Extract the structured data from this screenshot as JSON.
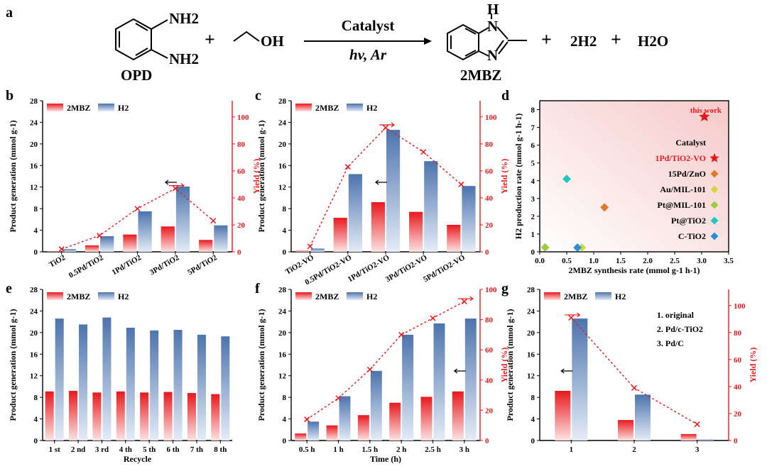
{
  "panel_labels": [
    "a",
    "b",
    "c",
    "d",
    "e",
    "f",
    "g"
  ],
  "scheme": {
    "reactant1": "OPD",
    "reactant1_groups": [
      "NH2",
      "NH2"
    ],
    "reactant2": "OH",
    "plus": "+",
    "arrow_top": "Catalyst",
    "arrow_bottom": "hv, Ar",
    "product": "2MBZ",
    "product_atoms": [
      "H",
      "N",
      "N"
    ],
    "byproducts": [
      "2H2",
      "H2O"
    ]
  },
  "legend": {
    "s1": "2MBZ",
    "s2": "H2"
  },
  "colors": {
    "red": "#e8191d",
    "blue": "#4d74ad",
    "dash": "#e8191d"
  },
  "chart_data": [
    {
      "id": "b",
      "type": "bar+line",
      "categories": [
        "TiO2",
        "0.5Pd/TiO2",
        "1Pd/TiO2",
        "3Pd/TiO2",
        "5Pd/TiO2"
      ],
      "series": [
        {
          "name": "2MBZ",
          "values": [
            0.1,
            1.2,
            3.2,
            4.7,
            2.2
          ]
        },
        {
          "name": "H2",
          "values": [
            0.5,
            2.9,
            7.5,
            12.1,
            4.9
          ]
        },
        {
          "name": "Yield",
          "axis": "right",
          "values": [
            2,
            12,
            32,
            47,
            23
          ]
        }
      ],
      "ylabel": "Product generation (mmol g-1)",
      "y2label": "Yield (%)",
      "ylim": [
        0,
        28
      ],
      "y2lim": [
        0,
        112
      ],
      "yticks": [
        0,
        4,
        8,
        12,
        16,
        20,
        24,
        28
      ],
      "y2ticks": [
        0,
        20,
        40,
        60,
        80,
        100
      ]
    },
    {
      "id": "c",
      "type": "bar+line",
      "categories": [
        "TiO2-VO",
        "0.5Pd/TiO2-VO",
        "1Pd/TiO2-VO",
        "3Pd/TiO2-VO",
        "5Pd/TiO2-VO"
      ],
      "series": [
        {
          "name": "2MBZ",
          "values": [
            0.2,
            6.3,
            9.2,
            7.4,
            5.0
          ]
        },
        {
          "name": "H2",
          "values": [
            0.6,
            14.4,
            22.6,
            16.8,
            12.2
          ]
        },
        {
          "name": "Yield",
          "axis": "right",
          "values": [
            4,
            63,
            92,
            74,
            50
          ]
        }
      ],
      "ylabel": "Product generation (mmol g-1)",
      "y2label": "Yield (%)",
      "ylim": [
        0,
        28
      ],
      "y2lim": [
        0,
        112
      ],
      "yticks": [
        0,
        4,
        8,
        12,
        16,
        20,
        24,
        28
      ],
      "y2ticks": [
        0,
        20,
        40,
        60,
        80,
        100
      ]
    },
    {
      "id": "d",
      "type": "scatter",
      "xlabel": "2MBZ synthesis rate (mmol g-1 h-1)",
      "ylabel": "H2 production rate (mmol g-1 h-1)",
      "xlim": [
        0,
        3.5
      ],
      "ylim": [
        0,
        8.5
      ],
      "xticks": [
        0.0,
        0.5,
        1.0,
        1.5,
        2.0,
        2.5,
        3.0,
        3.5
      ],
      "yticks": [
        0,
        1,
        2,
        3,
        4,
        5,
        6,
        7,
        8
      ],
      "legend_title": "Catalyst",
      "annotation": "this work",
      "points": [
        {
          "name": "1Pd/TiO2-VO",
          "x": 3.05,
          "y": 7.6,
          "marker": "star",
          "color": "#e8191d"
        },
        {
          "name": "15Pd/ZnO",
          "x": 1.2,
          "y": 2.5,
          "marker": "diamond",
          "color": "#e07b2a"
        },
        {
          "name": "Au/MIL-101",
          "x": 0.78,
          "y": 0.0,
          "marker": "diamond",
          "color": "#d8d640"
        },
        {
          "name": "Pt@MIL-101",
          "x": 0.1,
          "y": 0.25,
          "marker": "diamond",
          "color": "#9ccc3c"
        },
        {
          "name": "Pt@TiO2",
          "x": 0.5,
          "y": 4.1,
          "marker": "diamond",
          "color": "#22c7c0"
        },
        {
          "name": "C-TiO2",
          "x": 0.7,
          "y": 0.0,
          "marker": "diamond",
          "color": "#2b8fd6"
        }
      ]
    },
    {
      "id": "e",
      "type": "bar",
      "xlabel": "Recycle",
      "categories": [
        "1 st",
        "2 nd",
        "3 rd",
        "4 th",
        "5 th",
        "6 th",
        "7 th",
        "8 th"
      ],
      "series": [
        {
          "name": "2MBZ",
          "values": [
            9.1,
            9.2,
            8.9,
            9.1,
            8.9,
            9.0,
            8.8,
            8.6
          ]
        },
        {
          "name": "H2",
          "values": [
            22.6,
            21.5,
            22.8,
            20.9,
            20.4,
            20.5,
            19.6,
            19.3
          ]
        }
      ],
      "ylabel": "Product generation (mmol g-1)",
      "ylim": [
        0,
        28
      ],
      "yticks": [
        0,
        4,
        8,
        12,
        16,
        20,
        24,
        28
      ]
    },
    {
      "id": "f",
      "type": "bar+line",
      "xlabel": "Time (h)",
      "categories": [
        "0.5 h",
        "1 h",
        "1.5 h",
        "2 h",
        "2.5 h",
        "3 h"
      ],
      "series": [
        {
          "name": "2MBZ",
          "values": [
            1.3,
            2.8,
            4.7,
            7.0,
            8.1,
            9.1
          ]
        },
        {
          "name": "H2",
          "values": [
            3.5,
            8.2,
            12.9,
            19.6,
            21.7,
            22.6
          ]
        },
        {
          "name": "Yield",
          "axis": "right",
          "values": [
            14,
            28,
            47,
            70,
            81,
            92
          ]
        }
      ],
      "ylabel": "Product generation (mmol g-1)",
      "y2label": "Yield (%)",
      "ylim": [
        0,
        28
      ],
      "y2lim": [
        0,
        100
      ],
      "yticks": [
        0,
        4,
        8,
        12,
        16,
        20,
        24,
        28
      ],
      "y2ticks": [
        0,
        20,
        40,
        60,
        80,
        100
      ]
    },
    {
      "id": "g",
      "type": "bar+line",
      "categories": [
        "1",
        "2",
        "3"
      ],
      "series": [
        {
          "name": "2MBZ",
          "values": [
            9.2,
            3.8,
            1.2
          ]
        },
        {
          "name": "H2",
          "values": [
            22.6,
            8.5,
            0.2
          ]
        },
        {
          "name": "Yield",
          "axis": "right",
          "values": [
            91,
            39,
            12
          ]
        }
      ],
      "ylabel": "Product generation (mmol g-1)",
      "y2label": "Yield (%)",
      "ylim": [
        0,
        28
      ],
      "y2lim": [
        0,
        112
      ],
      "yticks": [
        0,
        4,
        8,
        12,
        16,
        20,
        24,
        28
      ],
      "y2ticks": [
        0,
        20,
        40,
        60,
        80,
        100
      ],
      "notes": [
        "1. original",
        "2. Pd/c-TiO2",
        "3. Pd/C"
      ]
    }
  ]
}
